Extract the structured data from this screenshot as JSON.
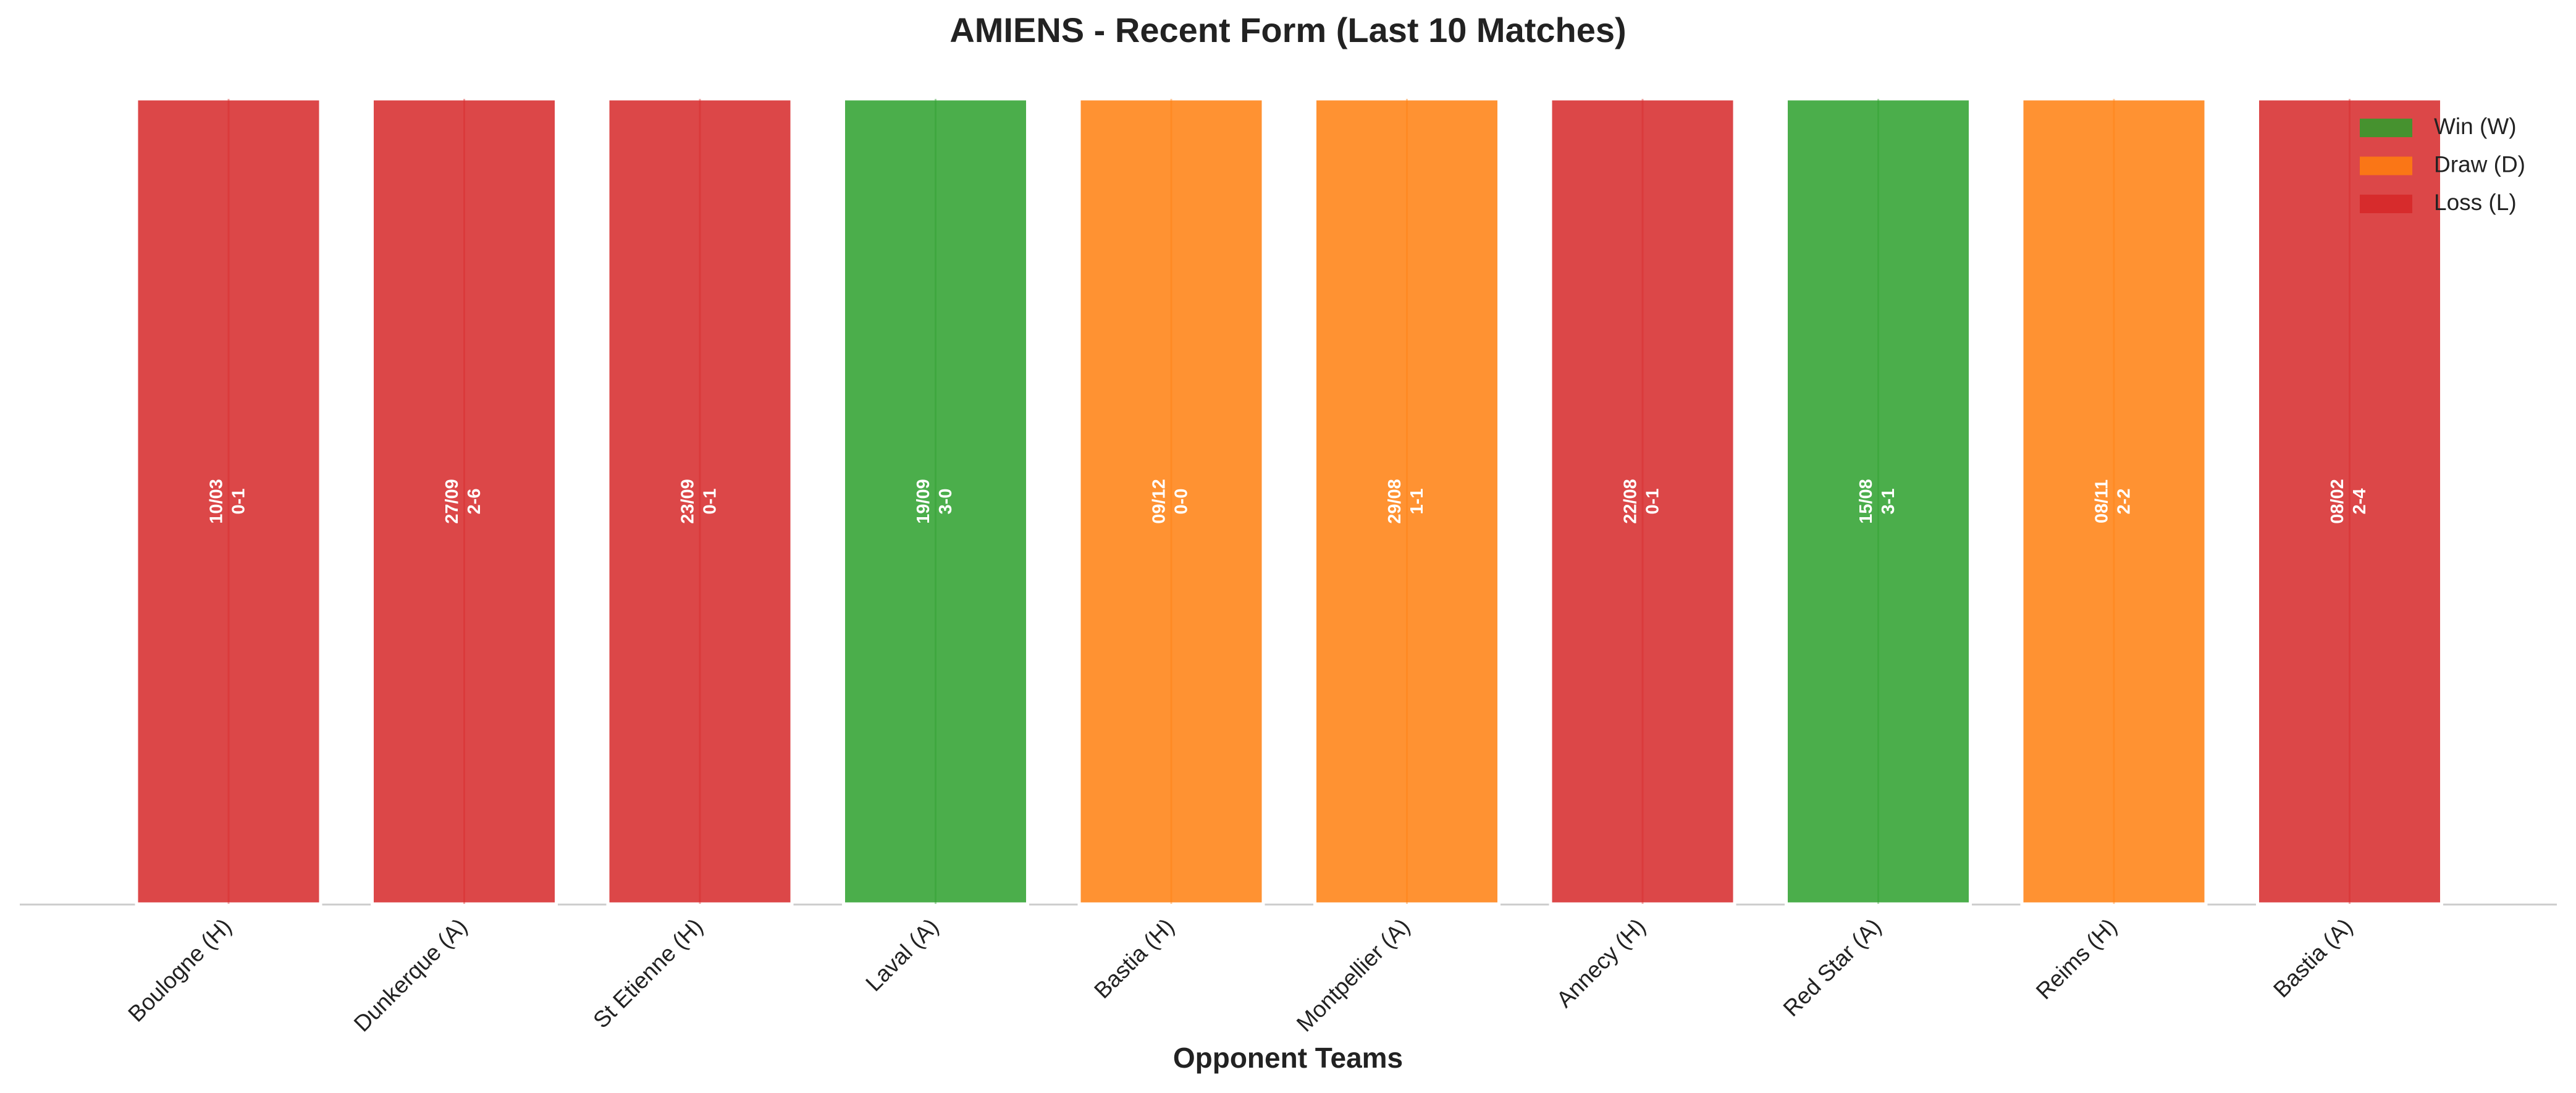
{
  "chart_data": {
    "type": "bar",
    "title": "AMIENS - Recent Form (Last 10 Matches)",
    "x_label": "Opponent Teams",
    "categories": [
      "Boulogne (H)",
      "Dunkerque (A)",
      "St Etienne (H)",
      "Laval (A)",
      "Bastia (H)",
      "Montpellier (A)",
      "Annecy (H)",
      "Red Star (A)",
      "Reims (H)",
      "Bastia (A)"
    ],
    "values": [
      1,
      1,
      1,
      1,
      1,
      1,
      1,
      1,
      1,
      1
    ],
    "dates": [
      "10/03",
      "27/09",
      "23/09",
      "19/09",
      "09/12",
      "29/08",
      "22/08",
      "15/08",
      "08/11",
      "08/02"
    ],
    "scores": [
      "0-1",
      "2-6",
      "0-1",
      "3-0",
      "0-0",
      "1-1",
      "0-1",
      "3-1",
      "2-2",
      "2-4"
    ],
    "colors": [
      "#d62728",
      "#d62728",
      "#d62728",
      "#2ca02c",
      "#ff7f0e",
      "#ff7f0e",
      "#d62728",
      "#2ca02c",
      "#ff7f0e",
      "#d62728"
    ],
    "ylim": [
      0,
      1
    ],
    "legend": [
      {
        "name": "Win (W)",
        "color": "#2ca02c"
      },
      {
        "name": "Draw (D)",
        "color": "#ff7f0e"
      },
      {
        "name": "Loss (L)",
        "color": "#d62728"
      }
    ],
    "legend_loc": "upper right"
  }
}
